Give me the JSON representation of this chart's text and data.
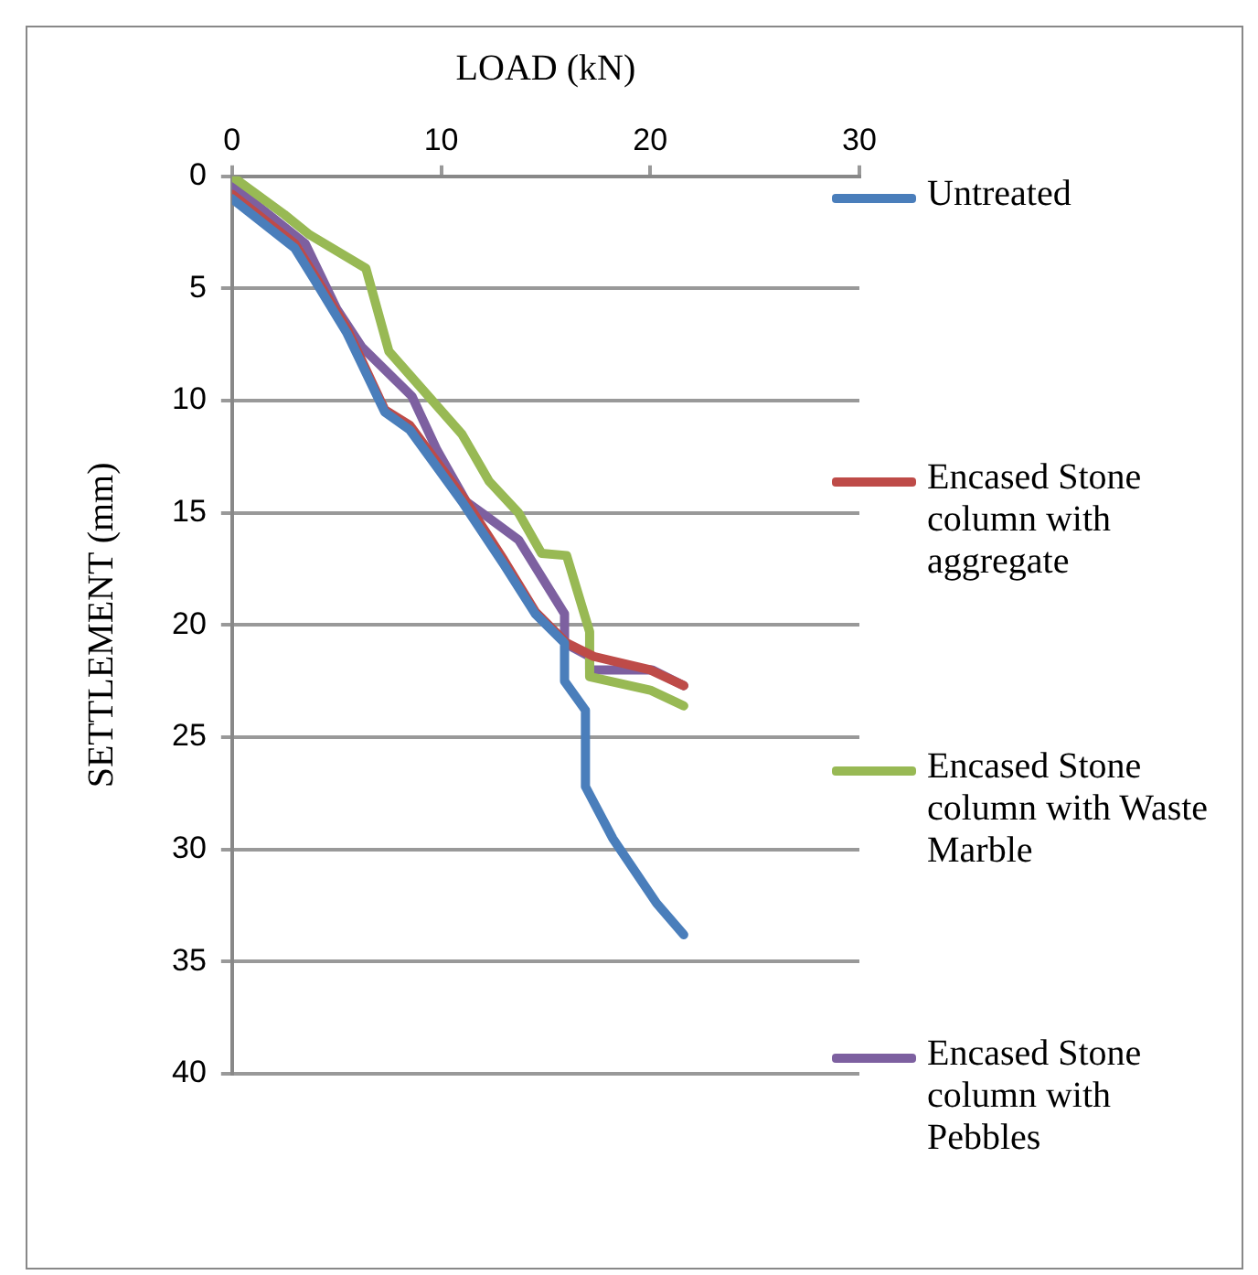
{
  "chart_data": {
    "type": "line",
    "xlabel": "LOAD (kN)",
    "ylabel": "SETTLEMENT (mm)",
    "xlim": [
      0,
      30
    ],
    "xticks": [
      0,
      10,
      20,
      30
    ],
    "ylim": [
      40,
      0
    ],
    "yticks": [
      0,
      5,
      10,
      15,
      20,
      25,
      30,
      35,
      40
    ],
    "grid": "y",
    "legend": "right",
    "marker": "none",
    "line_style": "solid",
    "series": [
      {
        "name": "Untreated",
        "color": "#4a7ebb",
        "x": [
          0,
          3,
          4,
          5.5,
          7.3,
          8.5,
          11,
          13,
          14.5,
          15.9,
          15.9,
          16.9,
          16.9,
          18.2,
          20.3,
          21.6
        ],
        "values": [
          1,
          3.2,
          4.7,
          7,
          10.5,
          11.3,
          14.5,
          17.3,
          19.5,
          20.8,
          22.5,
          23.8,
          27.2,
          29.5,
          32.4,
          33.8
        ]
      },
      {
        "name": "Encased Stone column with aggregate",
        "color": "#be4b48",
        "x": [
          0,
          3,
          4,
          5.5,
          7.3,
          8.5,
          11.2,
          13,
          14.5,
          16,
          17.3,
          20,
          21.6
        ],
        "values": [
          0.8,
          3,
          4.5,
          6.8,
          10.4,
          11.1,
          14.5,
          17.1,
          19.4,
          20.8,
          21.4,
          22,
          22.7
        ]
      },
      {
        "name": "Encased Stone column with Waste Marble",
        "color": "#98b954",
        "x": [
          0,
          2.5,
          3.7,
          6.4,
          7.5,
          11,
          12.3,
          13.7,
          14.8,
          16,
          17.1,
          17.1,
          20,
          21.6
        ],
        "values": [
          0,
          1.7,
          2.6,
          4.1,
          7.8,
          11.5,
          13.6,
          15,
          16.8,
          16.9,
          20.3,
          22.3,
          22.9,
          23.6
        ]
      },
      {
        "name": "Encased Stone column with Pebbles",
        "color": "#7d60a0",
        "x": [
          0,
          3.5,
          5,
          6.2,
          8.6,
          9.8,
          11.2,
          12.1,
          13.7,
          15.9,
          15.9,
          17.1,
          17.1,
          20.1,
          21.6
        ],
        "values": [
          0.4,
          3,
          5.9,
          7.6,
          9.8,
          12.2,
          14.5,
          15.1,
          16.2,
          19.5,
          20.8,
          21.4,
          22,
          22,
          22.7
        ]
      }
    ]
  }
}
